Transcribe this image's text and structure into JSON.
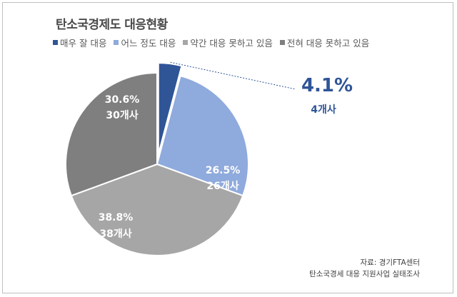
{
  "chart_data": {
    "type": "pie",
    "title": "탄소국경제도 대응현황",
    "categories": [
      "매우 잘 대응",
      "어느 정도 대응",
      "약간 대응 못하고 있음",
      "전혀 대응 못하고 있음"
    ],
    "values": [
      4.1,
      26.5,
      38.8,
      30.6
    ],
    "counts": [
      "4개사",
      "26개사",
      "38개사",
      "30개사"
    ],
    "percent_labels": [
      "4.1%",
      "26.5%",
      "38.8%",
      "30.6%"
    ],
    "colors": [
      "#2f5597",
      "#8faadc",
      "#a6a6a6",
      "#7f7f7f"
    ],
    "legend_position": "top",
    "exploded_slice": 0
  },
  "source": {
    "line1": "자료: 경기FTA센터",
    "line2": "탄소국경세 대응 지원사업 실태조사"
  }
}
